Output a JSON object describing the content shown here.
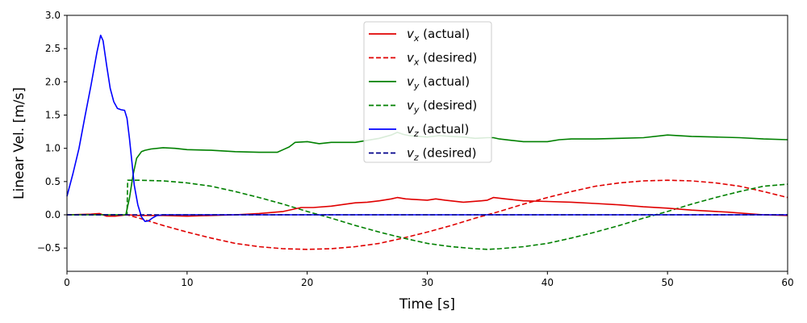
{
  "chart_data": {
    "type": "line",
    "xlabel": "Time [s]",
    "ylabel": "Linear Vel. [m/s]",
    "xlim": [
      0,
      60
    ],
    "ylim": [
      -0.85,
      3.0
    ],
    "xticks": [
      "0",
      "10",
      "20",
      "30",
      "40",
      "50",
      "60"
    ],
    "yticks": [
      "−0.5",
      "0.0",
      "0.5",
      "1.0",
      "1.5",
      "2.0",
      "2.5",
      "3.0"
    ],
    "grid": false,
    "legend_position": "top-center",
    "series": [
      {
        "name": "v_x (actual)",
        "var": "v",
        "sub": "x",
        "suffix": " (actual)",
        "color": "#e00000",
        "dash": false,
        "x": [
          0,
          2,
          2.7,
          3.3,
          4,
          5,
          6,
          8,
          10,
          12,
          14,
          16,
          18,
          19.5,
          20.5,
          22,
          24,
          25,
          26,
          27,
          27.5,
          28.2,
          29,
          30,
          30.7,
          31.5,
          33,
          34.5,
          35,
          35.5,
          36.5,
          38,
          40,
          42,
          44,
          46,
          48,
          50,
          52,
          55,
          58,
          60
        ],
        "y": [
          0.0,
          0.01,
          0.02,
          -0.02,
          -0.02,
          0.0,
          -0.01,
          -0.01,
          -0.02,
          -0.01,
          0.0,
          0.02,
          0.05,
          0.11,
          0.11,
          0.13,
          0.18,
          0.19,
          0.21,
          0.24,
          0.26,
          0.24,
          0.23,
          0.22,
          0.24,
          0.22,
          0.19,
          0.21,
          0.22,
          0.26,
          0.24,
          0.21,
          0.2,
          0.19,
          0.17,
          0.15,
          0.12,
          0.1,
          0.07,
          0.04,
          0.0,
          -0.01
        ]
      },
      {
        "name": "v_x (desired)",
        "var": "v",
        "sub": "x",
        "suffix": " (desired)",
        "color": "#e00000",
        "dash": true,
        "x": [
          0,
          5,
          6,
          8,
          10,
          12,
          14,
          16,
          18,
          20,
          22,
          24,
          26,
          28,
          30,
          32,
          34,
          36,
          38,
          40,
          42,
          44,
          46,
          48,
          50,
          52,
          54,
          56,
          58,
          60
        ],
        "y": [
          0.0,
          0.0,
          -0.05,
          -0.16,
          -0.26,
          -0.35,
          -0.43,
          -0.48,
          -0.51,
          -0.52,
          -0.51,
          -0.48,
          -0.43,
          -0.35,
          -0.26,
          -0.16,
          -0.05,
          0.05,
          0.16,
          0.26,
          0.35,
          0.43,
          0.48,
          0.51,
          0.52,
          0.51,
          0.48,
          0.43,
          0.35,
          0.26
        ]
      },
      {
        "name": "v_y (actual)",
        "var": "v",
        "sub": "y",
        "suffix": " (actual)",
        "color": "#008000",
        "dash": false,
        "x": [
          0,
          4.9,
          5.2,
          5.5,
          5.8,
          6.2,
          6.5,
          7,
          8,
          9,
          10,
          12,
          14,
          16,
          17.5,
          18,
          18.5,
          19,
          20,
          21,
          22,
          24,
          26,
          27,
          27.5,
          28,
          28.5,
          30,
          31,
          32,
          33,
          34,
          35,
          35.5,
          36,
          37,
          38,
          40,
          41,
          42,
          44,
          46,
          48,
          50,
          52,
          54,
          56,
          58,
          60
        ],
        "y": [
          0.0,
          0.0,
          0.25,
          0.6,
          0.85,
          0.95,
          0.97,
          0.99,
          1.01,
          1.0,
          0.98,
          0.97,
          0.95,
          0.94,
          0.94,
          0.98,
          1.02,
          1.09,
          1.1,
          1.07,
          1.09,
          1.09,
          1.15,
          1.2,
          1.24,
          1.21,
          1.19,
          1.17,
          1.19,
          1.18,
          1.17,
          1.15,
          1.16,
          1.16,
          1.14,
          1.12,
          1.1,
          1.1,
          1.13,
          1.14,
          1.14,
          1.15,
          1.16,
          1.2,
          1.18,
          1.17,
          1.16,
          1.14,
          1.13
        ]
      },
      {
        "name": "v_y (desired)",
        "var": "v",
        "sub": "y",
        "suffix": " (desired)",
        "color": "#008000",
        "dash": true,
        "x": [
          0,
          5,
          5.05,
          6,
          8,
          10,
          12,
          14,
          16,
          18,
          20,
          22,
          24,
          26,
          28,
          30,
          32,
          34,
          35,
          36,
          38,
          40,
          42,
          44,
          46,
          48,
          50,
          52,
          54,
          56,
          58,
          60
        ],
        "y": [
          0.0,
          0.0,
          0.52,
          0.52,
          0.51,
          0.48,
          0.43,
          0.35,
          0.26,
          0.16,
          0.05,
          -0.05,
          -0.16,
          -0.26,
          -0.35,
          -0.43,
          -0.48,
          -0.51,
          -0.52,
          -0.51,
          -0.48,
          -0.43,
          -0.35,
          -0.26,
          -0.16,
          -0.05,
          0.05,
          0.16,
          0.26,
          0.35,
          0.43,
          0.46
        ]
      },
      {
        "name": "v_z (actual)",
        "var": "v",
        "sub": "z",
        "suffix": " (actual)",
        "color": "#0000ff",
        "dash": false,
        "x": [
          0,
          0.5,
          1.0,
          1.5,
          2.0,
          2.5,
          2.8,
          3.0,
          3.3,
          3.6,
          3.9,
          4.2,
          4.5,
          4.8,
          5.0,
          5.2,
          5.4,
          5.6,
          5.9,
          6.2,
          6.5,
          6.8,
          7.1,
          7.5,
          8,
          9,
          10,
          15,
          20,
          30,
          40,
          50,
          60
        ],
        "y": [
          0.28,
          0.62,
          1.0,
          1.48,
          1.95,
          2.45,
          2.7,
          2.62,
          2.25,
          1.9,
          1.7,
          1.6,
          1.58,
          1.57,
          1.45,
          1.15,
          0.8,
          0.45,
          0.15,
          -0.03,
          -0.1,
          -0.09,
          -0.05,
          -0.01,
          0.0,
          0.0,
          0.0,
          0.0,
          0.0,
          0.0,
          0.0,
          0.0,
          0.0
        ]
      },
      {
        "name": "v_z (desired)",
        "var": "v",
        "sub": "z",
        "suffix": " (desired)",
        "color": "#00008b",
        "dash": true,
        "x": [
          0,
          60
        ],
        "y": [
          0.0,
          0.0
        ]
      }
    ]
  }
}
